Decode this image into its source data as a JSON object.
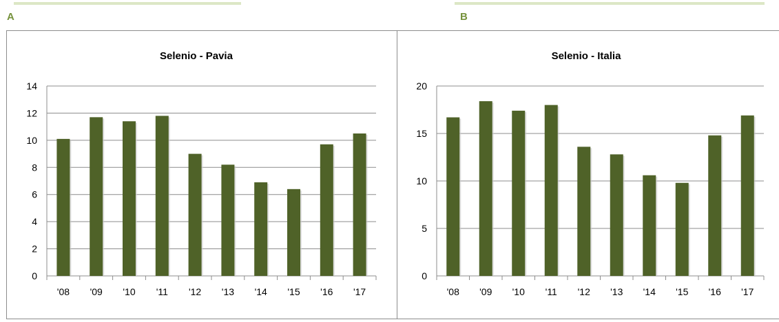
{
  "panels": [
    {
      "letter": "A"
    },
    {
      "letter": "B"
    }
  ],
  "chart_data": [
    {
      "type": "bar",
      "title": "Selenio - Pavia",
      "categories": [
        "'08",
        "'09",
        "'10",
        "'11",
        "'12",
        "'13",
        "'14",
        "'15",
        "'16",
        "'17"
      ],
      "values": [
        10.1,
        11.7,
        11.4,
        11.8,
        9.0,
        8.2,
        6.9,
        6.4,
        9.7,
        10.5
      ],
      "ylim": [
        0,
        14
      ],
      "yticks": [
        0,
        2,
        4,
        6,
        8,
        10,
        12,
        14
      ],
      "grid": true,
      "bar_color": "#4f6228"
    },
    {
      "type": "bar",
      "title": "Selenio - Italia",
      "categories": [
        "'08",
        "'09",
        "'10",
        "'11",
        "'12",
        "'13",
        "'14",
        "'15",
        "'16",
        "'17"
      ],
      "values": [
        16.7,
        18.4,
        17.4,
        18.0,
        13.6,
        12.8,
        10.6,
        9.8,
        14.8,
        16.9
      ],
      "ylim": [
        0,
        20
      ],
      "yticks": [
        0,
        5,
        10,
        15,
        20
      ],
      "grid": true,
      "bar_color": "#4f6228"
    }
  ]
}
